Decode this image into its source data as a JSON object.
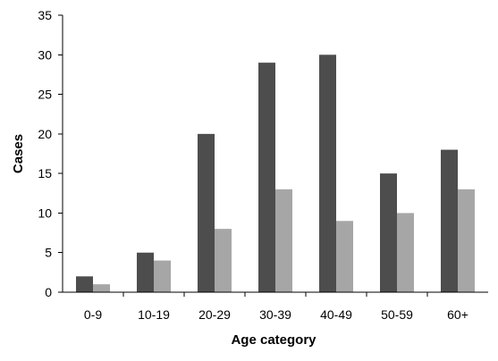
{
  "chart_data": {
    "type": "bar",
    "title": "",
    "xlabel": "Age category",
    "ylabel": "Cases",
    "categories": [
      "0-9",
      "10-19",
      "20-29",
      "30-39",
      "40-49",
      "50-59",
      "60+"
    ],
    "series": [
      {
        "values": [
          2,
          5,
          20,
          29,
          30,
          15,
          18
        ],
        "color": "#4d4d4d"
      },
      {
        "values": [
          1,
          4,
          8,
          13,
          9,
          10,
          13
        ],
        "color": "#a6a6a6"
      }
    ],
    "ylim": [
      0,
      35
    ],
    "yticks": [
      0,
      5,
      10,
      15,
      20,
      25,
      30,
      35
    ],
    "grid": false,
    "legend": "none"
  }
}
